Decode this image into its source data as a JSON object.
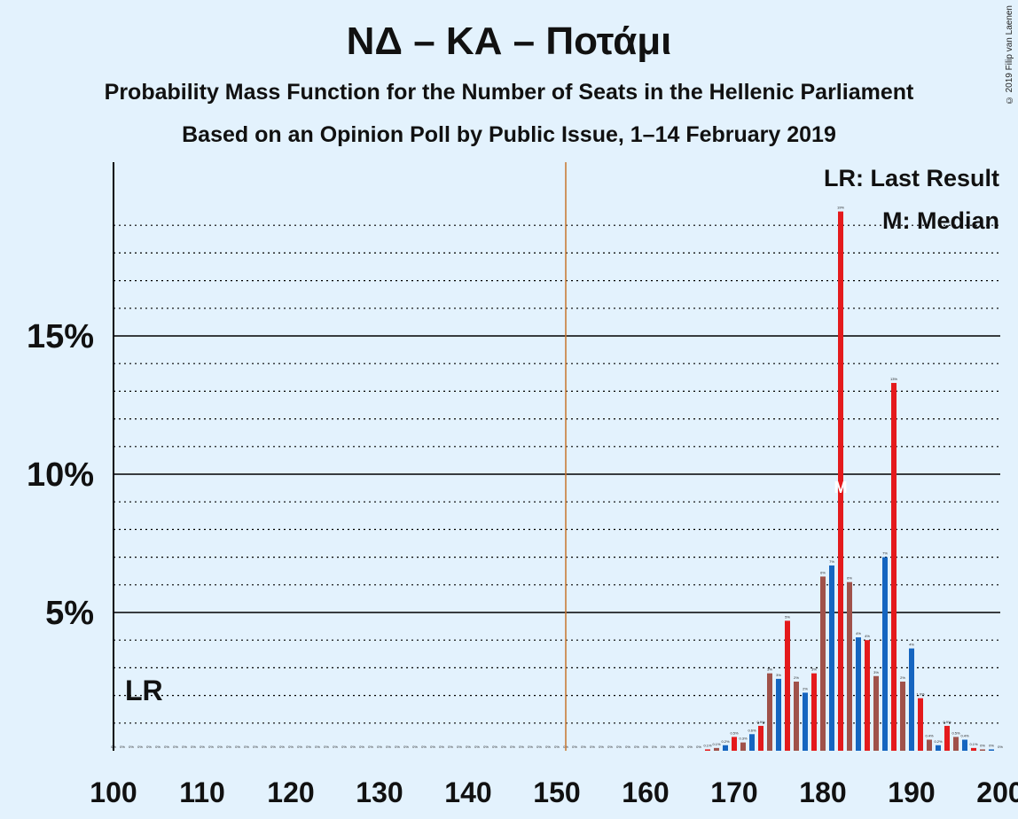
{
  "title": "ΝΔ – ΚΑ – Ποτάμι",
  "subtitle": "Probability Mass Function for the Number of Seats in the Hellenic Parliament",
  "subtitle2": "Based on an Opinion Poll by Public Issue, 1–14 February 2019",
  "copyright": "© 2019 Filip van Laenen",
  "legend": {
    "last_result": "LR: Last Result",
    "median": "M: Median"
  },
  "lr_label": "LR",
  "median_marker": "M",
  "colors": {
    "background": "#e3f2fd",
    "blue": "#1565c0",
    "red": "#e41a1c",
    "brown": "#a0524a",
    "majority_line": "#c8742c"
  },
  "chart_data": {
    "type": "bar",
    "xlabel": "",
    "ylabel": "",
    "xlim": [
      100,
      200
    ],
    "ylim": [
      0,
      21
    ],
    "x_ticks": [
      "100",
      "110",
      "120",
      "130",
      "140",
      "150",
      "160",
      "170",
      "180",
      "190",
      "200"
    ],
    "y_ticks": [
      "5%",
      "10%",
      "15%"
    ],
    "majority_seat": 151,
    "last_result_seat": 100,
    "median_seat": 182,
    "seats": [
      100,
      101,
      102,
      103,
      104,
      105,
      106,
      107,
      108,
      109,
      110,
      111,
      112,
      113,
      114,
      115,
      116,
      117,
      118,
      119,
      120,
      121,
      122,
      123,
      124,
      125,
      126,
      127,
      128,
      129,
      130,
      131,
      132,
      133,
      134,
      135,
      136,
      137,
      138,
      139,
      140,
      141,
      142,
      143,
      144,
      145,
      146,
      147,
      148,
      149,
      150,
      151,
      152,
      153,
      154,
      155,
      156,
      157,
      158,
      159,
      160,
      161,
      162,
      163,
      164,
      165,
      166,
      167,
      168,
      169,
      170,
      171,
      172,
      173,
      174,
      175,
      176,
      177,
      178,
      179,
      180,
      181,
      182,
      183,
      184,
      185,
      186,
      187,
      188,
      189,
      190,
      191,
      192,
      193,
      194,
      195,
      196,
      197,
      198,
      199,
      200
    ],
    "values": [
      0,
      0,
      0,
      0,
      0,
      0,
      0,
      0,
      0,
      0,
      0,
      0,
      0,
      0,
      0,
      0,
      0,
      0,
      0,
      0,
      0,
      0,
      0,
      0,
      0,
      0,
      0,
      0,
      0,
      0,
      0,
      0,
      0,
      0,
      0,
      0,
      0,
      0,
      0,
      0,
      0,
      0,
      0,
      0,
      0,
      0,
      0,
      0,
      0,
      0,
      0,
      0,
      0,
      0,
      0,
      0,
      0,
      0,
      0,
      0,
      0,
      0,
      0,
      0,
      0,
      0,
      0,
      0.05,
      0.1,
      0.2,
      0.5,
      0.3,
      0.6,
      0.9,
      2.8,
      2.6,
      4.7,
      2.5,
      2.1,
      2.8,
      6.3,
      6.7,
      19.5,
      6.1,
      4.1,
      4.0,
      2.7,
      7.0,
      13.3,
      2.5,
      3.7,
      1.9,
      0.4,
      0.2,
      0.9,
      0.5,
      0.4,
      0.1,
      0.05,
      0.05,
      0
    ],
    "bar_labels": [
      "0%",
      "0%",
      "0%",
      "0%",
      "0%",
      "0%",
      "0%",
      "0%",
      "0%",
      "0%",
      "0%",
      "0%",
      "0%",
      "0%",
      "0%",
      "0%",
      "0%",
      "0%",
      "0%",
      "0%",
      "0%",
      "0%",
      "0%",
      "0%",
      "0%",
      "0%",
      "0%",
      "0%",
      "0%",
      "0%",
      "0%",
      "0%",
      "0%",
      "0%",
      "0%",
      "0%",
      "0%",
      "0%",
      "0%",
      "0%",
      "0%",
      "0%",
      "0%",
      "0%",
      "0%",
      "0%",
      "0%",
      "0%",
      "0%",
      "0%",
      "0%",
      "0%",
      "0%",
      "0%",
      "0%",
      "0%",
      "0%",
      "0%",
      "0%",
      "0%",
      "0%",
      "0%",
      "0%",
      "0%",
      "0%",
      "0%",
      "0%",
      "0.1%",
      "0.1%",
      "0.2%",
      "0.5%",
      "0.3%",
      "0.6%",
      "0.9%",
      "3%",
      "3%",
      "5%",
      "2%",
      "2%",
      "3%",
      "6%",
      "7%",
      "19%",
      "6%",
      "4%",
      "4%",
      "3%",
      "7%",
      "13%",
      "2%",
      "4%",
      "1.9%",
      "0.4%",
      "0.2%",
      "0.9%",
      "0.5%",
      "0.4%",
      "0.1%",
      "0%",
      "0%",
      "0%"
    ]
  }
}
